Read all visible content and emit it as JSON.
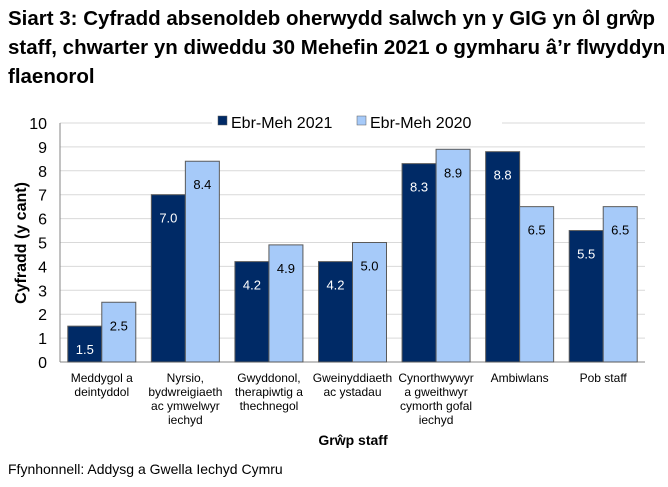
{
  "chart_data": {
    "type": "bar",
    "title": "Siart 3: Cyfradd absenoldeb oherwydd salwch yn y GIG yn ôl grŵp staff, chwarter yn diweddu 30 Mehefin 2021 o gymharu â’r flwyddyn flaenorol",
    "xlabel": "Grŵp staff",
    "ylabel": "Cyfradd (y cant)",
    "ylim": [
      0,
      10
    ],
    "yticks": [
      "0",
      "1",
      "2",
      "3",
      "4",
      "5",
      "6",
      "7",
      "8",
      "9",
      "10"
    ],
    "grid": true,
    "legend_position": "top-right",
    "categories": [
      [
        "Meddygol a",
        "deintyddol"
      ],
      [
        "Nyrsio,",
        "bydwreigiaeth",
        "ac ymwelwyr",
        "iechyd"
      ],
      [
        "Gwyddonol,",
        "therapiwtig a",
        "thechnegol"
      ],
      [
        "Gweinyddiaeth",
        "ac ystadau"
      ],
      [
        "Cynorthwywyr",
        "a gweithwyr",
        "cymorth gofal",
        "iechyd"
      ],
      [
        "Ambiwlans"
      ],
      [
        "Pob staff"
      ]
    ],
    "series": [
      {
        "name": "Ebr-Meh 2021",
        "color": "#002A66",
        "label_color": "#ffffff",
        "values": [
          1.5,
          7.0,
          4.2,
          4.2,
          8.3,
          8.8,
          5.5
        ],
        "labels": [
          "1.5",
          "7.0",
          "4.2",
          "4.2",
          "8.3",
          "8.8",
          "5.5"
        ]
      },
      {
        "name": "Ebr-Meh 2020",
        "color": "#A6CAF9",
        "label_color": "#000000",
        "values": [
          2.5,
          8.4,
          4.9,
          5.0,
          8.9,
          6.5,
          6.5
        ],
        "labels": [
          "2.5",
          "8.4",
          "4.9",
          "5.0",
          "8.9",
          "6.5",
          "6.5"
        ]
      }
    ]
  },
  "source": "Ffynhonnell: Addysg a Gwella Iechyd Cymru"
}
